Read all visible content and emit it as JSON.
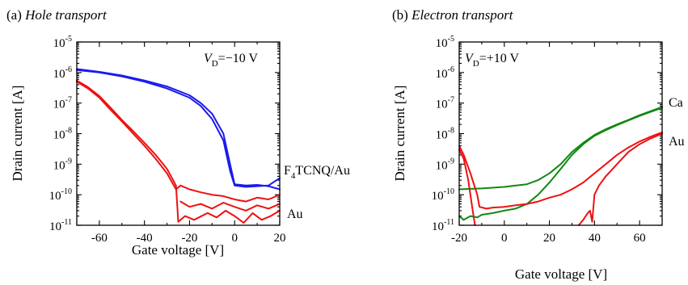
{
  "chart_data": [
    {
      "type": "line",
      "panel_label": "(a)",
      "title": "Hole transport",
      "xlabel": "Gate voltage [V]",
      "ylabel": "Drain current [A]",
      "yscale": "log",
      "xlim": [
        -70,
        20
      ],
      "ylim": [
        1e-11,
        1e-05
      ],
      "xticks": [
        "-60",
        "-40",
        "-20",
        "0",
        "20"
      ],
      "xtick_values": [
        -60,
        -40,
        -20,
        0,
        20
      ],
      "ytick_exponents": [
        "-11",
        "-10",
        "-9",
        "-8",
        "-7",
        "-6",
        "-5"
      ],
      "ytick_base": "10",
      "annotation": {
        "prefix": "V",
        "subscript": "D",
        "suffix": "=−10 V"
      },
      "grid": false,
      "series": [
        {
          "name": "F₄TCNQ/Au",
          "label_main": "F",
          "label_sub": "4",
          "label_rest": "TCNQ/Au",
          "color": "#1a1aee",
          "lines": [
            [
              [
                -70,
                1.2e-06
              ],
              [
                -60,
                1e-06
              ],
              [
                -50,
                7.5e-07
              ],
              [
                -40,
                5e-07
              ],
              [
                -30,
                3e-07
              ],
              [
                -20,
                1.5e-07
              ],
              [
                -15,
                8e-08
              ],
              [
                -10,
                3e-08
              ],
              [
                -5,
                6e-09
              ],
              [
                -2,
                6e-10
              ],
              [
                0,
                2e-10
              ],
              [
                5,
                1.8e-10
              ],
              [
                10,
                1.9e-10
              ],
              [
                15,
                2e-10
              ],
              [
                20,
                3.5e-10
              ]
            ],
            [
              [
                -70,
                1.3e-06
              ],
              [
                -60,
                1.05e-06
              ],
              [
                -50,
                8e-07
              ],
              [
                -40,
                5.5e-07
              ],
              [
                -30,
                3.5e-07
              ],
              [
                -20,
                1.8e-07
              ],
              [
                -15,
                1e-07
              ],
              [
                -10,
                4.5e-08
              ],
              [
                -5,
                1e-08
              ],
              [
                -2,
                1e-09
              ],
              [
                0,
                2.2e-10
              ],
              [
                5,
                2e-10
              ],
              [
                10,
                2.1e-10
              ],
              [
                15,
                1.9e-10
              ],
              [
                20,
                1.5e-10
              ]
            ]
          ]
        },
        {
          "name": "Au",
          "label_main": "Au",
          "color": "#ee1111",
          "lines": [
            [
              [
                -70,
                5e-07
              ],
              [
                -65,
                3e-07
              ],
              [
                -60,
                1.5e-07
              ],
              [
                -55,
                6e-08
              ],
              [
                -50,
                2.5e-08
              ],
              [
                -45,
                1e-08
              ],
              [
                -40,
                4e-09
              ],
              [
                -35,
                1.5e-09
              ],
              [
                -30,
                5e-10
              ],
              [
                -26,
                1.5e-10
              ],
              [
                -24,
                2e-10
              ],
              [
                -20,
                1.5e-10
              ],
              [
                -15,
                1.2e-10
              ],
              [
                -10,
                1e-10
              ],
              [
                -5,
                9e-11
              ],
              [
                0,
                7e-11
              ],
              [
                5,
                6e-11
              ],
              [
                10,
                8e-11
              ],
              [
                15,
                7e-11
              ],
              [
                20,
                1e-10
              ]
            ],
            [
              [
                -70,
                5.5e-07
              ],
              [
                -65,
                3.3e-07
              ],
              [
                -60,
                1.7e-07
              ],
              [
                -55,
                7e-08
              ],
              [
                -50,
                2.8e-08
              ],
              [
                -45,
                1.2e-08
              ],
              [
                -40,
                5e-09
              ],
              [
                -35,
                2e-09
              ],
              [
                -30,
                7e-10
              ],
              [
                -26,
                2e-10
              ],
              [
                -25,
                1.3e-11
              ],
              [
                -22,
                2e-11
              ],
              [
                -18,
                1.5e-11
              ],
              [
                -12,
                2.5e-11
              ],
              [
                -8,
                1.8e-11
              ],
              [
                -4,
                3e-11
              ],
              [
                0,
                2e-11
              ],
              [
                4,
                1.2e-11
              ],
              [
                8,
                2.5e-11
              ],
              [
                12,
                1.5e-11
              ],
              [
                16,
                2e-11
              ],
              [
                20,
                3e-11
              ]
            ],
            [
              [
                -24,
                6e-11
              ],
              [
                -20,
                4e-11
              ],
              [
                -15,
                5e-11
              ],
              [
                -10,
                3.5e-11
              ],
              [
                -5,
                5.5e-11
              ],
              [
                0,
                4e-11
              ],
              [
                5,
                3e-11
              ],
              [
                10,
                4.5e-11
              ],
              [
                15,
                3.5e-11
              ],
              [
                20,
                5e-11
              ]
            ]
          ]
        }
      ]
    },
    {
      "type": "line",
      "panel_label": "(b)",
      "title": "Electron transport",
      "xlabel": "Gate voltage [V]",
      "ylabel": "Drain current [A]",
      "yscale": "log",
      "xlim": [
        -20,
        70
      ],
      "ylim": [
        1e-11,
        1e-05
      ],
      "xticks": [
        "-20",
        "0",
        "20",
        "40",
        "60"
      ],
      "xtick_values": [
        -20,
        0,
        20,
        40,
        60
      ],
      "ytick_exponents": [
        "-11",
        "-10",
        "-9",
        "-8",
        "-7",
        "-6",
        "-5"
      ],
      "ytick_base": "10",
      "annotation": {
        "prefix": "V",
        "subscript": "D",
        "suffix": "=+10 V"
      },
      "grid": false,
      "series": [
        {
          "name": "Ca",
          "label_main": "Ca",
          "color": "#118811",
          "lines": [
            [
              [
                -20,
                1.5e-10
              ],
              [
                -10,
                1.6e-10
              ],
              [
                0,
                1.8e-10
              ],
              [
                10,
                2.2e-10
              ],
              [
                15,
                3e-10
              ],
              [
                20,
                5e-10
              ],
              [
                25,
                1e-09
              ],
              [
                30,
                2.5e-09
              ],
              [
                35,
                5e-09
              ],
              [
                40,
                9e-09
              ],
              [
                45,
                1.4e-08
              ],
              [
                50,
                2e-08
              ],
              [
                55,
                2.8e-08
              ],
              [
                60,
                4e-08
              ],
              [
                65,
                5.5e-08
              ],
              [
                70,
                7.5e-08
              ]
            ],
            [
              [
                -20,
                2e-11
              ],
              [
                -18,
                1.5e-11
              ],
              [
                -15,
                2e-11
              ],
              [
                -12,
                1.8e-11
              ],
              [
                -10,
                2.2e-11
              ],
              [
                -5,
                2.5e-11
              ],
              [
                0,
                3e-11
              ],
              [
                5,
                3.5e-11
              ],
              [
                10,
                5e-11
              ],
              [
                15,
                1e-10
              ],
              [
                20,
                2.5e-10
              ],
              [
                25,
                7e-10
              ],
              [
                30,
                2e-09
              ],
              [
                35,
                4.5e-09
              ],
              [
                40,
                8.5e-09
              ],
              [
                45,
                1.3e-08
              ],
              [
                50,
                1.9e-08
              ],
              [
                55,
                2.7e-08
              ],
              [
                60,
                3.8e-08
              ],
              [
                65,
                5.2e-08
              ],
              [
                70,
                7e-08
              ]
            ]
          ]
        },
        {
          "name": "Au",
          "label_main": "Au",
          "color": "#ee1111",
          "lines": [
            [
              [
                -20,
                4e-09
              ],
              [
                -18,
                2e-09
              ],
              [
                -15,
                5e-10
              ],
              [
                -12,
                1e-10
              ],
              [
                -11,
                4e-11
              ],
              [
                -8,
                3.5e-11
              ],
              [
                -5,
                3.8e-11
              ],
              [
                0,
                4e-11
              ],
              [
                5,
                4.5e-11
              ],
              [
                10,
                5e-11
              ],
              [
                15,
                6e-11
              ],
              [
                20,
                8e-11
              ],
              [
                25,
                1e-10
              ],
              [
                30,
                1.5e-10
              ],
              [
                35,
                2.5e-10
              ],
              [
                40,
                5e-10
              ],
              [
                45,
                1e-09
              ],
              [
                50,
                2e-09
              ],
              [
                55,
                3.5e-09
              ],
              [
                60,
                5.5e-09
              ],
              [
                65,
                8e-09
              ],
              [
                70,
                1.1e-08
              ]
            ],
            [
              [
                -20,
                3e-09
              ],
              [
                -18,
                1.5e-09
              ],
              [
                -16,
                3e-10
              ],
              [
                -14,
                3e-11
              ],
              [
                -13,
                1e-11
              ]
            ],
            [
              [
                33,
                1e-11
              ],
              [
                35,
                1.5e-11
              ],
              [
                37,
                2.5e-11
              ],
              [
                38,
                3e-11
              ],
              [
                39,
                1.3e-11
              ],
              [
                40,
                1e-10
              ],
              [
                42,
                2e-10
              ],
              [
                45,
                4e-10
              ],
              [
                50,
                1e-09
              ],
              [
                55,
                2.5e-09
              ],
              [
                60,
                4.5e-09
              ],
              [
                65,
                7e-09
              ],
              [
                70,
                1e-08
              ]
            ]
          ]
        }
      ]
    }
  ]
}
